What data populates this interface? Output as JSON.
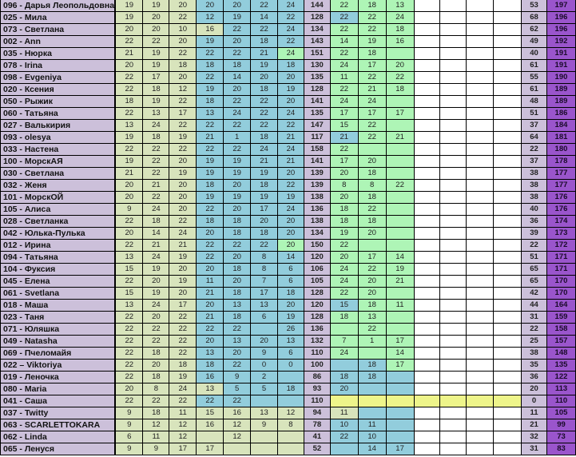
{
  "colors": {
    "y": "#d8e4bc",
    "b": "#92cddc",
    "g": "#aef5b6",
    "Y": "#eef58a",
    "w": "#ffffff",
    "lavender": "#ccc0da",
    "purple": "#9a55cc"
  },
  "rows": [
    {
      "name": "096 - Дарья Леопольдовна",
      "a": [
        "19",
        "19",
        "20",
        "20",
        "20",
        "22",
        "24"
      ],
      "sum": "144",
      "b": [
        "22",
        "18",
        "13"
      ],
      "sum2": "53",
      "total": "197",
      "c": "yyybbbbgggwwww"
    },
    {
      "name": "025 - Мила",
      "a": [
        "19",
        "20",
        "22",
        "12",
        "19",
        "14",
        "22"
      ],
      "sum": "128",
      "b": [
        "22",
        "22",
        "24"
      ],
      "sum2": "68",
      "total": "196",
      "c": "yyybbbbbggwwww"
    },
    {
      "name": "073 - Светлана",
      "a": [
        "20",
        "20",
        "10",
        "16",
        "22",
        "22",
        "24"
      ],
      "sum": "134",
      "b": [
        "22",
        "22",
        "18"
      ],
      "sum2": "62",
      "total": "196",
      "c": "yyyybbbgggwwww"
    },
    {
      "name": "002 - Ann",
      "a": [
        "22",
        "22",
        "20",
        "19",
        "20",
        "18",
        "22"
      ],
      "sum": "143",
      "b": [
        "14",
        "19",
        "16"
      ],
      "sum2": "49",
      "total": "192",
      "c": "yyybbbbgggwwww"
    },
    {
      "name": "035 - Нюрка",
      "a": [
        "21",
        "19",
        "22",
        "22",
        "22",
        "21",
        "24"
      ],
      "sum": "151",
      "b": [
        "22",
        "18",
        ""
      ],
      "sum2": "40",
      "total": "191",
      "c": "yyybbbggggwwww"
    },
    {
      "name": "078 - Irina",
      "a": [
        "20",
        "19",
        "18",
        "18",
        "18",
        "19",
        "18"
      ],
      "sum": "130",
      "b": [
        "24",
        "17",
        "20"
      ],
      "sum2": "61",
      "total": "191",
      "c": "yyybbbbgggwwww"
    },
    {
      "name": "098 - Evgeniya",
      "a": [
        "22",
        "17",
        "20",
        "22",
        "14",
        "20",
        "20"
      ],
      "sum": "135",
      "b": [
        "11",
        "22",
        "22"
      ],
      "sum2": "55",
      "total": "190",
      "c": "yyybbbbgggwwww"
    },
    {
      "name": "020 - Ксения",
      "a": [
        "22",
        "18",
        "12",
        "19",
        "20",
        "18",
        "19"
      ],
      "sum": "128",
      "b": [
        "22",
        "21",
        "18"
      ],
      "sum2": "61",
      "total": "189",
      "c": "yyybbbbgggwwww"
    },
    {
      "name": "050 - Рыжик",
      "a": [
        "18",
        "19",
        "22",
        "18",
        "22",
        "22",
        "20"
      ],
      "sum": "141",
      "b": [
        "24",
        "24",
        ""
      ],
      "sum2": "48",
      "total": "189",
      "c": "yyybbbbgggwwww"
    },
    {
      "name": "060 - Татьяна",
      "a": [
        "22",
        "13",
        "17",
        "13",
        "24",
        "22",
        "24"
      ],
      "sum": "135",
      "b": [
        "17",
        "17",
        "17"
      ],
      "sum2": "51",
      "total": "186",
      "c": "yyybbbbgggwwww"
    },
    {
      "name": "027 - Валькирия",
      "a": [
        "13",
        "24",
        "22",
        "22",
        "22",
        "22",
        "22"
      ],
      "sum": "147",
      "b": [
        "15",
        "22",
        ""
      ],
      "sum2": "37",
      "total": "184",
      "c": "yyybbbbgggwwww"
    },
    {
      "name": "093 - olesya",
      "a": [
        "19",
        "18",
        "19",
        "21",
        "1",
        "18",
        "21"
      ],
      "sum": "117",
      "b": [
        "21",
        "22",
        "21"
      ],
      "sum2": "64",
      "total": "181",
      "c": "yyybbbbbggwwww"
    },
    {
      "name": "033 - Настена",
      "a": [
        "22",
        "22",
        "22",
        "22",
        "22",
        "24",
        "24"
      ],
      "sum": "158",
      "b": [
        "22",
        "",
        ""
      ],
      "sum2": "22",
      "total": "180",
      "c": "yyybbbbgggwwww"
    },
    {
      "name": "100 - МорскАЯ",
      "a": [
        "19",
        "22",
        "20",
        "19",
        "19",
        "21",
        "21"
      ],
      "sum": "141",
      "b": [
        "17",
        "20",
        ""
      ],
      "sum2": "37",
      "total": "178",
      "c": "yyybbbbgggwwww"
    },
    {
      "name": "030 - Светлана",
      "a": [
        "21",
        "22",
        "19",
        "19",
        "19",
        "19",
        "20"
      ],
      "sum": "139",
      "b": [
        "20",
        "18",
        ""
      ],
      "sum2": "38",
      "total": "177",
      "c": "yyybbbbgggwwww"
    },
    {
      "name": "032 - Женя",
      "a": [
        "20",
        "21",
        "20",
        "18",
        "20",
        "18",
        "22"
      ],
      "sum": "139",
      "b": [
        "8",
        "8",
        "22"
      ],
      "sum2": "38",
      "total": "177",
      "c": "yyybbbbgggwwww"
    },
    {
      "name": "101 - МорскОЙ",
      "a": [
        "20",
        "22",
        "20",
        "19",
        "19",
        "19",
        "19"
      ],
      "sum": "138",
      "b": [
        "20",
        "18",
        ""
      ],
      "sum2": "38",
      "total": "176",
      "c": "yyybbbbgggwwww"
    },
    {
      "name": "105 - Алиса",
      "a": [
        "9",
        "24",
        "20",
        "22",
        "20",
        "17",
        "24"
      ],
      "sum": "136",
      "b": [
        "18",
        "22",
        ""
      ],
      "sum2": "40",
      "total": "176",
      "c": "yyybbbbgggwwww"
    },
    {
      "name": "028 - Светланка",
      "a": [
        "22",
        "18",
        "22",
        "18",
        "18",
        "20",
        "20"
      ],
      "sum": "138",
      "b": [
        "18",
        "18",
        ""
      ],
      "sum2": "36",
      "total": "174",
      "c": "yyybbbbgggwwww"
    },
    {
      "name": "042 - Юлька-Пулька",
      "a": [
        "20",
        "14",
        "24",
        "20",
        "18",
        "18",
        "20"
      ],
      "sum": "134",
      "b": [
        "19",
        "20",
        ""
      ],
      "sum2": "39",
      "total": "173",
      "c": "yyybbbbgggwwww"
    },
    {
      "name": "012 - Ирина",
      "a": [
        "22",
        "21",
        "21",
        "22",
        "22",
        "22",
        "20"
      ],
      "sum": "150",
      "b": [
        "22",
        "",
        ""
      ],
      "sum2": "22",
      "total": "172",
      "c": "yyybbbggggwwww"
    },
    {
      "name": "094 - Татьяна",
      "a": [
        "13",
        "24",
        "19",
        "22",
        "20",
        "8",
        "14"
      ],
      "sum": "120",
      "b": [
        "20",
        "17",
        "14"
      ],
      "sum2": "51",
      "total": "171",
      "c": "yyybbbbgggwwww"
    },
    {
      "name": "104 - Фуксия",
      "a": [
        "15",
        "19",
        "20",
        "20",
        "18",
        "8",
        "6"
      ],
      "sum": "106",
      "b": [
        "24",
        "22",
        "19"
      ],
      "sum2": "65",
      "total": "171",
      "c": "yyybbbbgggwwww"
    },
    {
      "name": "045 - Елена",
      "a": [
        "22",
        "20",
        "19",
        "11",
        "20",
        "7",
        "6"
      ],
      "sum": "105",
      "b": [
        "24",
        "20",
        "21"
      ],
      "sum2": "65",
      "total": "170",
      "c": "yyybbbbgggwwww"
    },
    {
      "name": "061 - Svetlana",
      "a": [
        "15",
        "19",
        "20",
        "21",
        "18",
        "17",
        "18"
      ],
      "sum": "128",
      "b": [
        "22",
        "20",
        ""
      ],
      "sum2": "42",
      "total": "170",
      "c": "yyybbbbgggwwww"
    },
    {
      "name": "018 - Маша",
      "a": [
        "13",
        "24",
        "17",
        "20",
        "13",
        "13",
        "20"
      ],
      "sum": "120",
      "b": [
        "15",
        "18",
        "11"
      ],
      "sum2": "44",
      "total": "164",
      "c": "yyybbbbbggwwww"
    },
    {
      "name": "023 - Таня",
      "a": [
        "22",
        "20",
        "22",
        "21",
        "18",
        "6",
        "19"
      ],
      "sum": "128",
      "b": [
        "18",
        "13",
        ""
      ],
      "sum2": "31",
      "total": "159",
      "c": "yyybbbbgggwwww"
    },
    {
      "name": "071 -  Юляшка",
      "a": [
        "22",
        "22",
        "22",
        "22",
        "22",
        "",
        "26"
      ],
      "sum": "136",
      "b": [
        "",
        "22",
        ""
      ],
      "sum2": "22",
      "total": "158",
      "c": "yyybbbbgggwwww"
    },
    {
      "name": "049 - Natasha",
      "a": [
        "22",
        "22",
        "22",
        "20",
        "13",
        "20",
        "13"
      ],
      "sum": "132",
      "b": [
        "7",
        "1",
        "17"
      ],
      "sum2": "25",
      "total": "157",
      "c": "yyybbbbgggwwww"
    },
    {
      "name": "069 - Пчеломайя",
      "a": [
        "22",
        "18",
        "22",
        "13",
        "20",
        "9",
        "6"
      ],
      "sum": "110",
      "b": [
        "24",
        "",
        "14"
      ],
      "sum2": "38",
      "total": "148",
      "c": "yyybbbbgggwwww"
    },
    {
      "name": "022 – Viktoriya",
      "a": [
        "22",
        "20",
        "18",
        "18",
        "22",
        "0",
        "0"
      ],
      "sum": "100",
      "b": [
        "",
        "18",
        "17"
      ],
      "sum2": "35",
      "total": "135",
      "c": "yyybbbbbbgwwww"
    },
    {
      "name": "019 - Леночка",
      "a": [
        "22",
        "18",
        "19",
        "16",
        "9",
        "2",
        ""
      ],
      "sum": "86",
      "b": [
        "18",
        "18",
        ""
      ],
      "sum2": "36",
      "total": "122",
      "c": "yyybbbbbbbwwww"
    },
    {
      "name": "080 - Maria",
      "a": [
        "20",
        "8",
        "24",
        "13",
        "5",
        "5",
        "18"
      ],
      "sum": "93",
      "b": [
        "20",
        "",
        ""
      ],
      "sum2": "20",
      "total": "113",
      "c": "yyyybbbbbbwwww"
    },
    {
      "name": "041 - Саша",
      "a": [
        "22",
        "22",
        "22",
        "22",
        "22",
        "",
        ""
      ],
      "sum": "110",
      "b": [
        "",
        "",
        ""
      ],
      "sum2": "0",
      "total": "110",
      "c": "yyybbbbYYYYYYY"
    },
    {
      "name": "037 - Twitty",
      "a": [
        "9",
        "18",
        "11",
        "15",
        "16",
        "13",
        "12"
      ],
      "sum": "94",
      "b": [
        "11",
        "",
        ""
      ],
      "sum2": "11",
      "total": "105",
      "c": "yyyyyyyybbwwww"
    },
    {
      "name": "063 - SCARLETTOKARA",
      "a": [
        "9",
        "12",
        "12",
        "16",
        "12",
        "9",
        "8"
      ],
      "sum": "78",
      "b": [
        "10",
        "11",
        ""
      ],
      "sum2": "21",
      "total": "99",
      "c": "yyyyyyybbbwwww"
    },
    {
      "name": "062 - Linda",
      "a": [
        "6",
        "11",
        "12",
        "",
        "12",
        "",
        ""
      ],
      "sum": "41",
      "b": [
        "22",
        "10",
        ""
      ],
      "sum2": "32",
      "total": "73",
      "c": "yyyyyyybbbwwww"
    },
    {
      "name": "065 - Ленуся",
      "a": [
        "9",
        "9",
        "17",
        "17",
        "",
        "",
        ""
      ],
      "sum": "52",
      "b": [
        "",
        "14",
        "17"
      ],
      "sum2": "31",
      "total": "83",
      "c": "yyyyyyybbbwwww"
    }
  ]
}
